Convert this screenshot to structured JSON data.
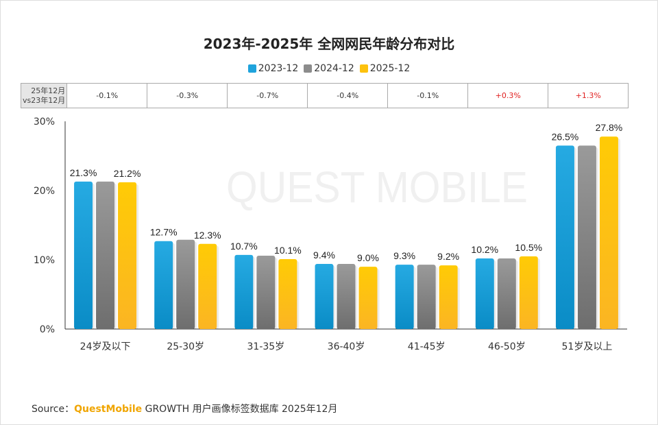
{
  "title": "2023年-2025年 全网网民年龄分布对比",
  "legend": [
    "2023-12",
    "2024-12",
    "2025-12"
  ],
  "colors": {
    "2023-12": "#1fa3dc",
    "2024-12": "#8c8c8c",
    "2025-12": "#fdc20e",
    "positive_diff": "#e02020"
  },
  "diff_table": {
    "header_line1": "25年12月",
    "header_line2": "vs23年12月",
    "values": [
      "-0.1%",
      "-0.3%",
      "-0.7%",
      "-0.4%",
      "-0.1%",
      "+0.3%",
      "+1.3%"
    ]
  },
  "watermark": "QUEST MOBILE",
  "chart_data": {
    "type": "bar",
    "title": "2023年-2025年 全网网民年龄分布对比",
    "categories": [
      "24岁及以下",
      "25-30岁",
      "31-35岁",
      "36-40岁",
      "41-45岁",
      "46-50岁",
      "51岁及以上"
    ],
    "series": [
      {
        "name": "2023-12",
        "values": [
          21.3,
          12.7,
          10.7,
          9.4,
          9.3,
          10.2,
          26.5
        ],
        "labels": [
          "21.3%",
          "12.7%",
          "10.7%",
          "9.4%",
          "9.3%",
          "10.2%",
          "26.5%"
        ]
      },
      {
        "name": "2024-12",
        "values": [
          21.3,
          12.9,
          10.6,
          9.4,
          9.3,
          10.2,
          26.5
        ],
        "labels": []
      },
      {
        "name": "2025-12",
        "values": [
          21.2,
          12.3,
          10.1,
          9.0,
          9.2,
          10.5,
          27.8
        ],
        "labels": [
          "21.2%",
          "12.3%",
          "10.1%",
          "9.0%",
          "9.2%",
          "10.5%",
          "27.8%"
        ]
      }
    ],
    "yticks": [
      "0%",
      "10%",
      "20%",
      "30%"
    ],
    "ylim": [
      0,
      30
    ],
    "unit": "%",
    "grid": false,
    "legend_position": "top"
  },
  "source": {
    "prefix": "Source：",
    "brand": "QuestMobile",
    "text": " GROWTH 用户画像标签数据库 2025年12月"
  }
}
